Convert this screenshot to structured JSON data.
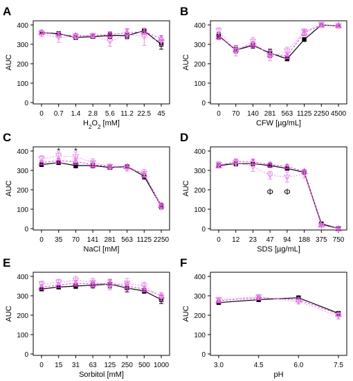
{
  "colors": {
    "series_a": "#000000",
    "series_b": "#e03ce0",
    "series_c": "#e98ce9"
  },
  "chart_data": [
    {
      "type": "line",
      "panel": "A",
      "categories": [
        "0",
        "0.7",
        "1.4",
        "2.8",
        "5.6",
        "11.2",
        "22.5",
        "45"
      ],
      "xlabel_main": "H",
      "xlabel_sub": "2",
      "xlabel_mid": "O",
      "xlabel_sub2": "2",
      "xlabel_end": " [mM]",
      "ylabel": "AUC",
      "ylim": [
        0,
        400
      ],
      "yticks": [
        0,
        100,
        200,
        300,
        400
      ],
      "series": [
        {
          "values": [
            360,
            355,
            335,
            340,
            345,
            345,
            370,
            300
          ],
          "err": [
            10,
            10,
            10,
            8,
            15,
            15,
            10,
            25
          ]
        },
        {
          "values": [
            362,
            350,
            345,
            345,
            350,
            360,
            365,
            330
          ],
          "err": [
            10,
            12,
            10,
            8,
            15,
            20,
            15,
            15
          ]
        },
        {
          "values": [
            355,
            335,
            340,
            345,
            315,
            350,
            340,
            315
          ],
          "err": [
            15,
            25,
            10,
            10,
            25,
            25,
            45,
            20
          ]
        }
      ],
      "annotations": []
    },
    {
      "type": "line",
      "panel": "B",
      "categories": [
        "0",
        "70",
        "140",
        "281",
        "563",
        "1125",
        "2250",
        "4500"
      ],
      "xlabel": "CFW [µg/mL]",
      "ylabel": "AUC",
      "ylim": [
        0,
        400
      ],
      "yticks": [
        0,
        100,
        200,
        300,
        400
      ],
      "series": [
        {
          "values": [
            345,
            270,
            295,
            255,
            225,
            325,
            400,
            395
          ],
          "err": [
            15,
            15,
            15,
            20,
            10,
            10,
            8,
            8
          ]
        },
        {
          "values": [
            340,
            275,
            300,
            250,
            240,
            360,
            400,
            398
          ],
          "err": [
            15,
            20,
            15,
            20,
            15,
            15,
            8,
            8
          ]
        },
        {
          "values": [
            370,
            265,
            315,
            240,
            265,
            365,
            402,
            395
          ],
          "err": [
            15,
            25,
            20,
            25,
            20,
            15,
            8,
            8
          ]
        }
      ],
      "annotations": []
    },
    {
      "type": "line",
      "panel": "C",
      "categories": [
        "0",
        "35",
        "70",
        "141",
        "281",
        "563",
        "1125",
        "2250"
      ],
      "xlabel": "NaCl [mM]",
      "ylabel": "AUC",
      "ylim": [
        0,
        400
      ],
      "yticks": [
        0,
        100,
        200,
        300,
        400
      ],
      "series": [
        {
          "values": [
            330,
            340,
            325,
            325,
            315,
            320,
            270,
            115
          ],
          "err": [
            10,
            10,
            12,
            12,
            10,
            8,
            15,
            12
          ]
        },
        {
          "values": [
            340,
            350,
            345,
            330,
            320,
            320,
            280,
            120
          ],
          "err": [
            10,
            12,
            15,
            15,
            10,
            10,
            15,
            12
          ]
        },
        {
          "values": [
            360,
            375,
            370,
            340,
            320,
            310,
            285,
            110
          ],
          "err": [
            15,
            20,
            25,
            20,
            12,
            12,
            20,
            12
          ]
        }
      ],
      "annotations": [
        {
          "category_index": 1,
          "text": "*",
          "y": 400
        },
        {
          "category_index": 2,
          "text": "*",
          "y": 400
        }
      ]
    },
    {
      "type": "line",
      "panel": "D",
      "categories": [
        "0",
        "12",
        "23",
        "47",
        "94",
        "188",
        "375",
        "750"
      ],
      "xlabel": "SDS [µg/mL]",
      "ylabel": "AUC",
      "ylim": [
        0,
        400
      ],
      "yticks": [
        0,
        100,
        200,
        300,
        400
      ],
      "series": [
        {
          "values": [
            325,
            335,
            335,
            325,
            310,
            290,
            25,
            0
          ],
          "err": [
            10,
            10,
            10,
            8,
            8,
            8,
            5,
            3
          ]
        },
        {
          "values": [
            325,
            345,
            345,
            330,
            320,
            295,
            20,
            0
          ],
          "err": [
            12,
            12,
            12,
            12,
            10,
            10,
            5,
            3
          ]
        },
        {
          "values": [
            330,
            340,
            320,
            275,
            265,
            280,
            15,
            0
          ],
          "err": [
            15,
            20,
            25,
            20,
            25,
            20,
            5,
            3
          ]
        }
      ],
      "annotations": [
        {
          "category_index": 3,
          "text": "Φ",
          "y": 190
        },
        {
          "category_index": 4,
          "text": "Φ",
          "y": 190
        }
      ]
    },
    {
      "type": "line",
      "panel": "E",
      "categories": [
        "0",
        "15",
        "31",
        "63",
        "125",
        "250",
        "500",
        "1000"
      ],
      "xlabel": "Sorbitol [mM]",
      "ylabel": "AUC",
      "ylim": [
        0,
        400
      ],
      "yticks": [
        0,
        100,
        200,
        300,
        400
      ],
      "series": [
        {
          "values": [
            335,
            345,
            350,
            355,
            360,
            340,
            325,
            280
          ],
          "err": [
            10,
            10,
            12,
            15,
            20,
            20,
            12,
            20
          ]
        },
        {
          "values": [
            345,
            355,
            365,
            360,
            365,
            350,
            335,
            300
          ],
          "err": [
            12,
            12,
            15,
            15,
            20,
            20,
            15,
            15
          ]
        },
        {
          "values": [
            360,
            370,
            380,
            370,
            355,
            365,
            350,
            295
          ],
          "err": [
            15,
            15,
            20,
            20,
            25,
            25,
            20,
            20
          ]
        }
      ],
      "annotations": []
    },
    {
      "type": "line",
      "panel": "F",
      "categories": [
        "3.0",
        "4.5",
        "6.0",
        "7.5"
      ],
      "xlabel": "pH",
      "ylabel": "AUC",
      "ylim": [
        0,
        400
      ],
      "yticks": [
        0,
        100,
        200,
        300,
        400
      ],
      "series": [
        {
          "values": [
            265,
            280,
            290,
            210
          ],
          "err": [
            10,
            10,
            10,
            10
          ]
        },
        {
          "values": [
            275,
            290,
            280,
            205
          ],
          "err": [
            10,
            10,
            10,
            10
          ]
        },
        {
          "values": [
            280,
            295,
            270,
            195
          ],
          "err": [
            12,
            12,
            12,
            15
          ]
        }
      ],
      "annotations": []
    }
  ]
}
